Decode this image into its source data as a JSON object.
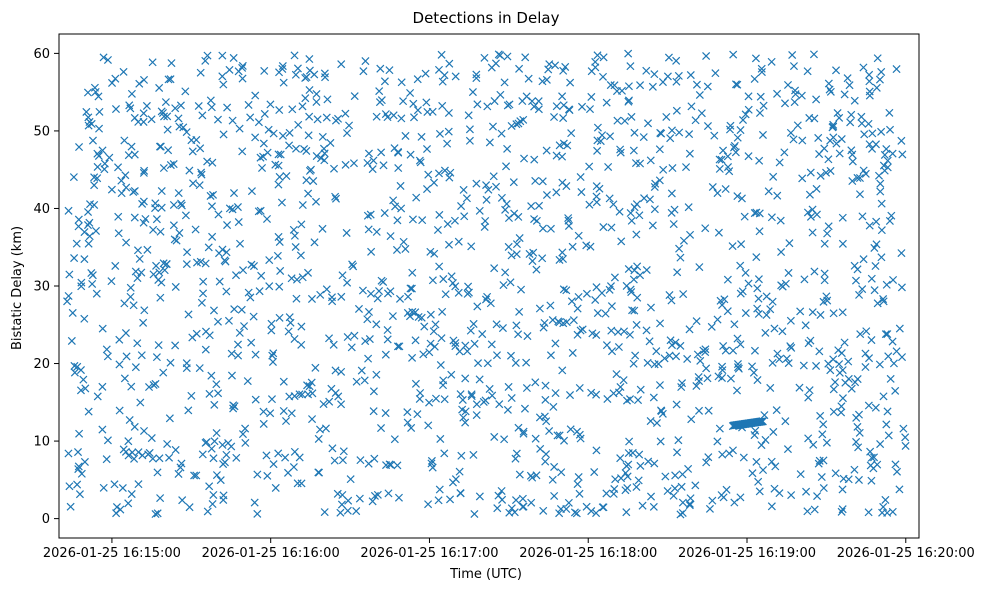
{
  "chart_data": {
    "type": "scatter",
    "title": "Detections in Delay",
    "xlabel": "Time (UTC)",
    "ylabel": "Bistatic Delay (km)",
    "marker": "x",
    "color": "#1f77b4",
    "grid": false,
    "xlim": [
      "2026-01-25 16:14:40",
      "2026-01-25 16:20:05"
    ],
    "ylim": [
      -2.5,
      62.5
    ],
    "xticks": [
      "2026-01-25 16:15:00",
      "2026-01-25 16:16:00",
      "2026-01-25 16:17:00",
      "2026-01-25 16:18:00",
      "2026-01-25 16:19:00",
      "2026-01-25 16:20:00"
    ],
    "yticks": [
      0,
      10,
      20,
      30,
      40,
      50,
      60
    ],
    "background_detections": {
      "description_of_distribution": "approximately uniform noise detections",
      "time_range": [
        "2026-01-25 16:14:43",
        "2026-01-25 16:20:00"
      ],
      "delay_range_km": [
        0.5,
        60
      ]
    },
    "track": {
      "points": [
        {
          "x": "2026-01-25 16:18:55",
          "y": 12.0
        },
        {
          "x": "2026-01-25 16:18:56",
          "y": 12.05
        },
        {
          "x": "2026-01-25 16:18:57",
          "y": 12.1
        },
        {
          "x": "2026-01-25 16:18:58",
          "y": 12.15
        },
        {
          "x": "2026-01-25 16:18:59",
          "y": 12.2
        },
        {
          "x": "2026-01-25 16:19:00",
          "y": 12.25
        },
        {
          "x": "2026-01-25 16:19:01",
          "y": 12.3
        },
        {
          "x": "2026-01-25 16:19:02",
          "y": 12.35
        },
        {
          "x": "2026-01-25 16:19:03",
          "y": 12.4
        },
        {
          "x": "2026-01-25 16:19:04",
          "y": 12.45
        },
        {
          "x": "2026-01-25 16:19:05",
          "y": 12.5
        },
        {
          "x": "2026-01-25 16:19:06",
          "y": 12.55
        }
      ]
    }
  }
}
